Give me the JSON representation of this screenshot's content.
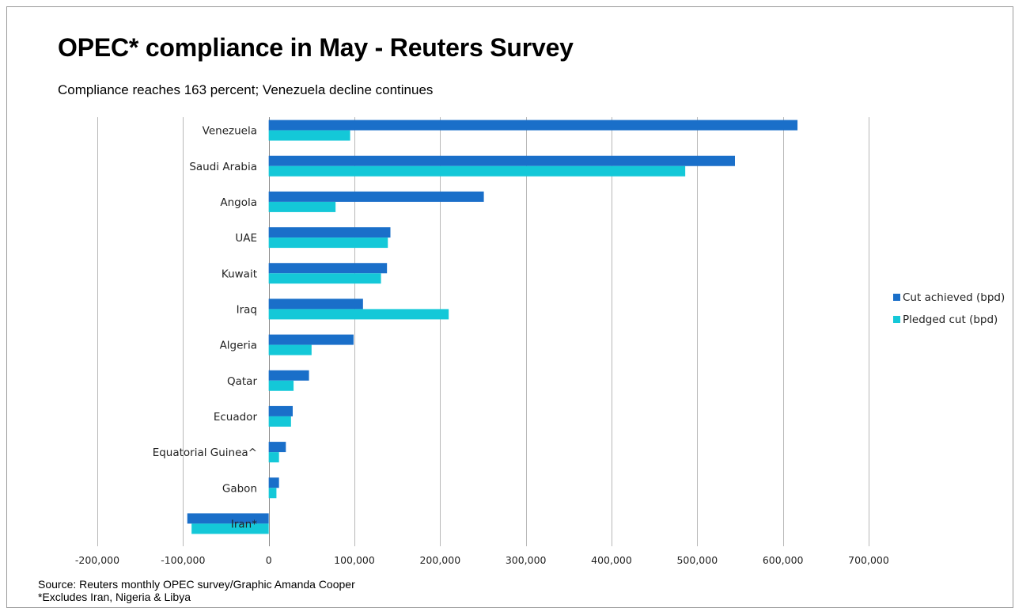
{
  "title": "OPEC* compliance in May - Reuters Survey",
  "subtitle": "Compliance reaches 163 percent; Venezuela decline continues",
  "source": "Source: Reuters monthly OPEC survey/Graphic  Amanda Cooper",
  "footnote": "*Excludes Iran, Nigeria & Libya",
  "colors": {
    "cut_achieved": "#1a6fc9",
    "pledged_cut": "#14c8d8",
    "grid": "#b8b8b8"
  },
  "chart_data": {
    "type": "bar",
    "orientation": "horizontal",
    "categories": [
      "Venezuela",
      "Saudi Arabia",
      "Angola",
      "UAE",
      "Kuwait",
      "Iraq",
      "Algeria",
      "Qatar",
      "Ecuador",
      "Equatorial Guinea^",
      "Gabon",
      "Iran*"
    ],
    "series": [
      {
        "name": "Cut achieved (bpd)",
        "values": [
          617000,
          544000,
          251000,
          142000,
          138000,
          110000,
          99000,
          47000,
          28000,
          20000,
          12000,
          -95000
        ]
      },
      {
        "name": "Pledged cut (bpd)",
        "values": [
          95000,
          486000,
          78000,
          139000,
          131000,
          210000,
          50000,
          29000,
          26000,
          12000,
          9000,
          -90000
        ]
      }
    ],
    "xlim": [
      -200000,
      700000
    ],
    "xticks": [
      "-200,000",
      "-100,000",
      "0",
      "100,000",
      "200,000",
      "300,000",
      "400,000",
      "500,000",
      "600,000",
      "700,000"
    ],
    "xtick_values": [
      -200000,
      -100000,
      0,
      100000,
      200000,
      300000,
      400000,
      500000,
      600000,
      700000
    ],
    "grid": true,
    "legend_position": "right"
  }
}
